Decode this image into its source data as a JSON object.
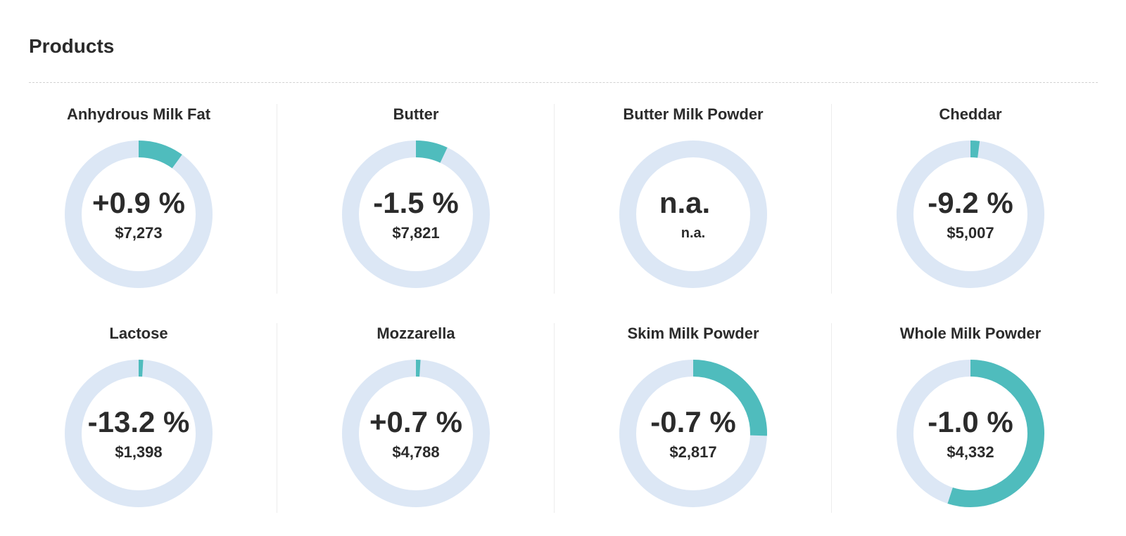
{
  "page": {
    "title": "Products"
  },
  "colors": {
    "ring_track": "#dce7f5",
    "ring_fill": "#4fbcbd",
    "text": "#2b2b2b"
  },
  "products": [
    {
      "name": "Anhydrous Milk Fat",
      "change": "+0.9 %",
      "price": "$7,273",
      "share": 0.1
    },
    {
      "name": "Butter",
      "change": "-1.5 %",
      "price": "$7,821",
      "share": 0.07
    },
    {
      "name": "Butter Milk Powder",
      "change": "n.a.",
      "price": "n.a.",
      "share": 0
    },
    {
      "name": "Cheddar",
      "change": "-9.2 %",
      "price": "$5,007",
      "share": 0.02
    },
    {
      "name": "Lactose",
      "change": "-13.2 %",
      "price": "$1,398",
      "share": 0.01
    },
    {
      "name": "Mozzarella",
      "change": "+0.7 %",
      "price": "$4,788",
      "share": 0.01
    },
    {
      "name": "Skim Milk Powder",
      "change": "-0.7 %",
      "price": "$2,817",
      "share": 0.255
    },
    {
      "name": "Whole Milk Powder",
      "change": "-1.0 %",
      "price": "$4,332",
      "share": 0.55
    }
  ]
}
